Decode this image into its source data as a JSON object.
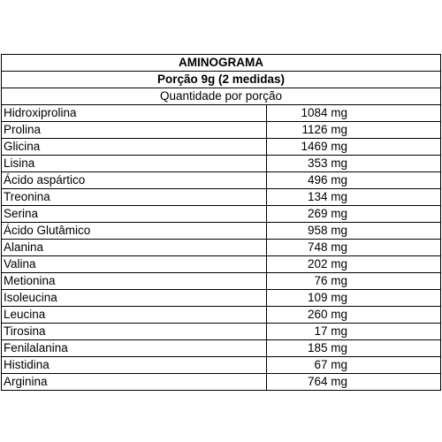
{
  "header": {
    "title": "AMINOGRAMA",
    "portion": "Porção 9g (2 medidas)",
    "quantity_label": "Quantidade por porção"
  },
  "rows": [
    {
      "name": "Hidroxiprolina",
      "value": "1084 mg"
    },
    {
      "name": "Prolina",
      "value": "1126 mg"
    },
    {
      "name": "Glicina",
      "value": "1469 mg"
    },
    {
      "name": "Lisina",
      "value": "353 mg"
    },
    {
      "name": "Ácido aspártico",
      "value": "496 mg"
    },
    {
      "name": "Treonina",
      "value": "134 mg"
    },
    {
      "name": "Serina",
      "value": "269 mg"
    },
    {
      "name": "Ácido Glutâmico",
      "value": "958 mg"
    },
    {
      "name": "Alanina",
      "value": "748 mg"
    },
    {
      "name": "Valina",
      "value": "202 mg"
    },
    {
      "name": "Metionina",
      "value": "76 mg"
    },
    {
      "name": "Isoleucina",
      "value": "109 mg"
    },
    {
      "name": "Leucina",
      "value": "260 mg"
    },
    {
      "name": "Tirosina",
      "value": "17 mg"
    },
    {
      "name": "Fenilalanina",
      "value": "185 mg"
    },
    {
      "name": "Histidina",
      "value": "67 mg"
    },
    {
      "name": "Arginina",
      "value": "764 mg"
    }
  ]
}
